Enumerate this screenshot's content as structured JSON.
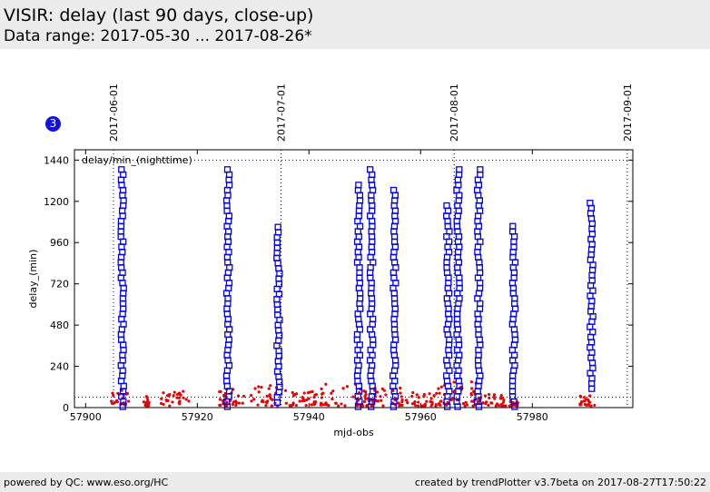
{
  "header": {
    "title": "VISIR: delay (last 90 days, close-up)",
    "subtitle": "Data range: 2017-05-30 ... 2017-08-26*"
  },
  "plot_badge": "3",
  "footer": {
    "left": "powered by QC: www.eso.org/HC",
    "right": "created by trendPlotter v3.7beta on 2017-08-27T17:50:22"
  },
  "colors": {
    "square_series": "#0000ee",
    "dot_series": "#ee0000",
    "badge": "#1010e0"
  },
  "chart_data": {
    "type": "scatter",
    "xlabel": "mjd-obs",
    "ylabel": "delay_(min)",
    "annotation": "delay/min_(nighttime)",
    "xlim": [
      57898,
      57998
    ],
    "ylim": [
      0,
      1500
    ],
    "x_ticks": [
      57900,
      57920,
      57940,
      57960,
      57980
    ],
    "y_ticks": [
      0,
      240,
      480,
      720,
      960,
      1200,
      1440
    ],
    "reference_lines_y": [
      60,
      1440
    ],
    "date_markers": [
      {
        "x": 57905,
        "label": "2017-06-01"
      },
      {
        "x": 57935,
        "label": "2017-07-01"
      },
      {
        "x": 57966,
        "label": "2017-08-01"
      },
      {
        "x": 57997,
        "label": "2017-09-01"
      }
    ],
    "series": [
      {
        "marker": "square",
        "columns": [
          {
            "x": 57906.6,
            "ymin": 5,
            "ymax": 1400
          },
          {
            "x": 57925.5,
            "ymin": 5,
            "ymax": 1390
          },
          {
            "x": 57934.5,
            "ymin": 30,
            "ymax": 1050
          },
          {
            "x": 57948.9,
            "ymin": 5,
            "ymax": 1320
          },
          {
            "x": 57951.2,
            "ymin": 5,
            "ymax": 1400
          },
          {
            "x": 57955.3,
            "ymin": 5,
            "ymax": 1270
          },
          {
            "x": 57964.9,
            "ymin": 5,
            "ymax": 1190
          },
          {
            "x": 57966.7,
            "ymin": 5,
            "ymax": 1390
          },
          {
            "x": 57970.4,
            "ymin": 5,
            "ymax": 1390
          },
          {
            "x": 57976.7,
            "ymin": 5,
            "ymax": 1080
          },
          {
            "x": 57990.6,
            "ymin": 110,
            "ymax": 1200
          }
        ]
      },
      {
        "marker": "dot",
        "clusters": [
          {
            "x": 57906,
            "spread": 1.8,
            "ymax": 100
          },
          {
            "x": 57911,
            "spread": 0.6,
            "ymax": 70
          },
          {
            "x": 57916,
            "spread": 2.5,
            "ymax": 95
          },
          {
            "x": 57926,
            "spread": 2.5,
            "ymax": 110
          },
          {
            "x": 57932,
            "spread": 2.5,
            "ymax": 130
          },
          {
            "x": 57939,
            "spread": 3.5,
            "ymax": 100
          },
          {
            "x": 57947,
            "spread": 5,
            "ymax": 140
          },
          {
            "x": 57953,
            "spread": 4,
            "ymax": 120
          },
          {
            "x": 57960,
            "spread": 4,
            "ymax": 90
          },
          {
            "x": 57966,
            "spread": 4,
            "ymax": 150
          },
          {
            "x": 57972,
            "spread": 3,
            "ymax": 80
          },
          {
            "x": 57976,
            "spread": 1.5,
            "ymax": 40
          },
          {
            "x": 57990,
            "spread": 1.5,
            "ymax": 75
          }
        ]
      }
    ]
  }
}
